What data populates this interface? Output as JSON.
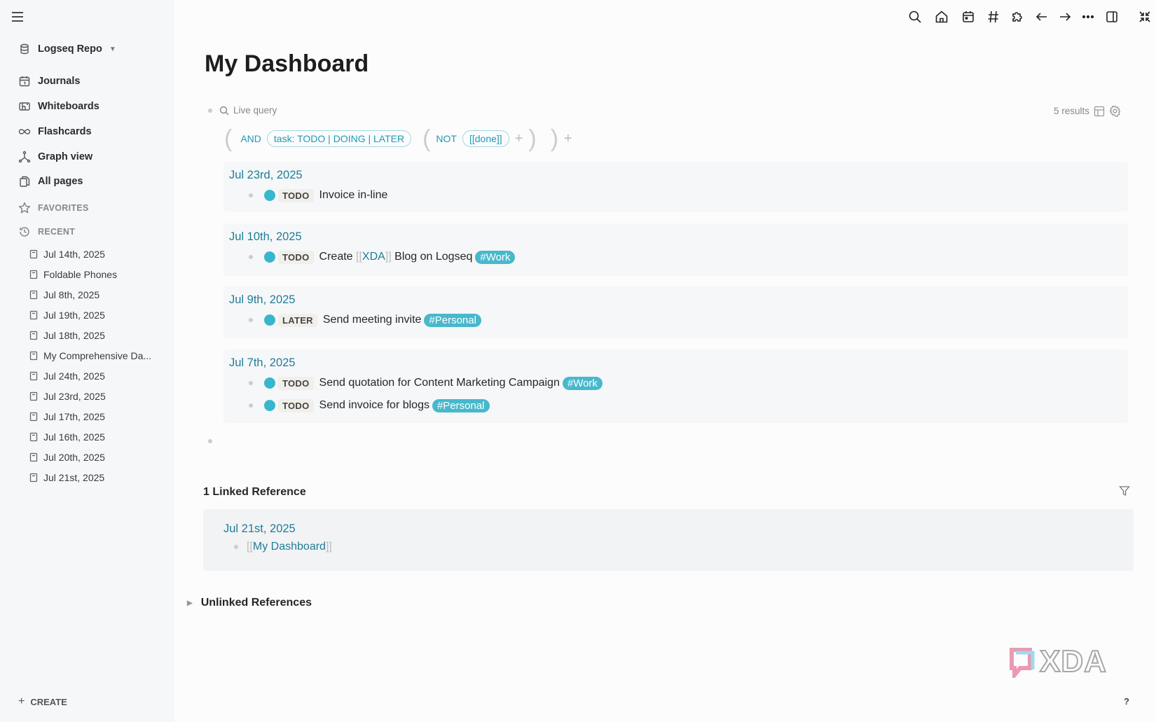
{
  "sidebar": {
    "repo": "Logseq Repo",
    "nav": [
      {
        "label": "Journals",
        "icon": "calendar-icon"
      },
      {
        "label": "Whiteboards",
        "icon": "whiteboard-icon"
      },
      {
        "label": "Flashcards",
        "icon": "infinity-icon"
      },
      {
        "label": "Graph view",
        "icon": "graph-icon"
      },
      {
        "label": "All pages",
        "icon": "pages-icon"
      }
    ],
    "favorites": "FAVORITES",
    "recent": "RECENT",
    "recent_items": [
      "Jul 14th, 2025",
      "Foldable Phones",
      "Jul 8th, 2025",
      "Jul 19th, 2025",
      "Jul 18th, 2025",
      "My Comprehensive Da...",
      "Jul 24th, 2025",
      "Jul 23rd, 2025",
      "Jul 17th, 2025",
      "Jul 16th, 2025",
      "Jul 20th, 2025",
      "Jul 21st, 2025"
    ],
    "create": "CREATE"
  },
  "toolbar": [
    "search-icon",
    "home-icon",
    "calendar-icon",
    "hashtag-icon",
    "puzzle-icon",
    "arrow-left-icon",
    "arrow-right-icon",
    "more-icon",
    "sidebar-toggle-icon",
    "compress-icon"
  ],
  "page": {
    "title": "My Dashboard"
  },
  "query": {
    "label": "Live query",
    "results": "5 results",
    "and": "AND",
    "task_filter": "task: TODO | DOING | LATER",
    "not": "NOT",
    "done_filter": "[[done]]",
    "plus": "+"
  },
  "groups": [
    {
      "date": "Jul 23rd, 2025",
      "tasks": [
        {
          "marker": "TODO",
          "text": "Invoice in-line"
        }
      ]
    },
    {
      "date": "Jul 10th, 2025",
      "tasks": [
        {
          "marker": "TODO",
          "pre": "Create",
          "ref": "XDA",
          "text": "Blog on Logseq",
          "tag": "#Work"
        }
      ]
    },
    {
      "date": "Jul 9th, 2025",
      "tasks": [
        {
          "marker": "LATER",
          "text": "Send meeting invite",
          "tag": "#Personal"
        }
      ]
    },
    {
      "date": "Jul 7th, 2025",
      "tasks": [
        {
          "marker": "TODO",
          "text": "Send quotation for Content Marketing Campaign",
          "tag": "#Work"
        },
        {
          "marker": "TODO",
          "text": "Send invoice for blogs",
          "tag": "#Personal"
        }
      ]
    }
  ],
  "linked": {
    "heading": "1 Linked Reference",
    "date": "Jul 21st, 2025",
    "ref": "My Dashboard",
    "open": "[[",
    "close": "]]"
  },
  "unlinked": {
    "heading": "Unlinked References"
  },
  "help": "?",
  "colors": {
    "accent": "#1f7d97",
    "checkbox": "#39b6cd",
    "tag": "#48b8cc"
  }
}
